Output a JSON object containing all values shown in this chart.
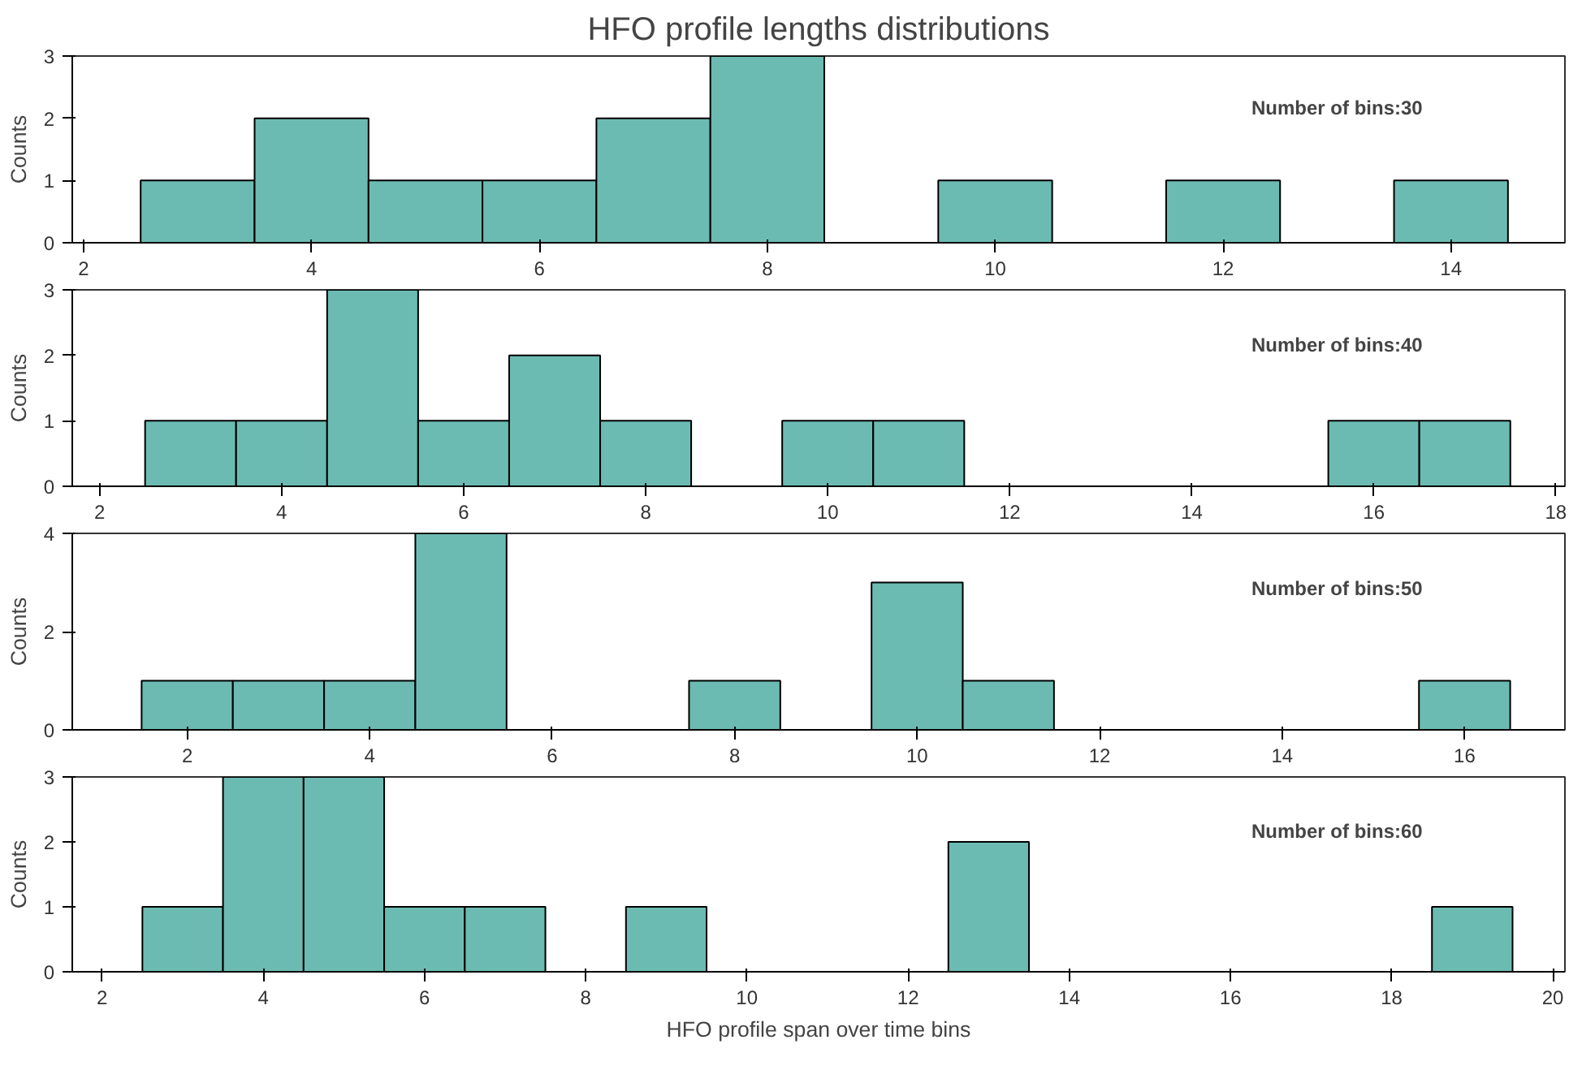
{
  "chart_data": [
    {
      "type": "histogram",
      "title": "HFO profile lengths distributions",
      "ylabel": "Counts",
      "annotations": [
        "Number of bins:30"
      ],
      "color": "#6cbbb2",
      "grid": false,
      "bins": [
        2.5,
        3.5,
        4.5,
        5.5,
        6.5,
        7.5,
        8.5,
        9.5,
        10.5,
        11.5,
        12.5,
        13.5,
        14.5
      ],
      "values": [
        1,
        2,
        1,
        1,
        2,
        3,
        0,
        1,
        0,
        1,
        0,
        1
      ],
      "xlim": [
        1.9,
        15
      ],
      "xticks": [
        2,
        4,
        6,
        8,
        10,
        12,
        14
      ],
      "ylim": [
        0,
        3
      ],
      "yticks": [
        0,
        1,
        2,
        3
      ]
    },
    {
      "type": "histogram",
      "ylabel": "Counts",
      "annotations": [
        "Number of bins:40"
      ],
      "color": "#6cbbb2",
      "grid": false,
      "bins": [
        2.5,
        3.5,
        4.5,
        5.5,
        6.5,
        7.5,
        8.5,
        9.5,
        10.5,
        11.5,
        12.5,
        13.5,
        14.5,
        15.5,
        16.5,
        17.5
      ],
      "values": [
        1,
        1,
        3,
        1,
        2,
        1,
        0,
        1,
        1,
        0,
        0,
        0,
        0,
        1,
        1
      ],
      "xlim": [
        1.7,
        18.1
      ],
      "xticks": [
        2,
        4,
        6,
        8,
        10,
        12,
        14,
        16,
        18
      ],
      "ylim": [
        0,
        3
      ],
      "yticks": [
        0,
        1,
        2,
        3
      ]
    },
    {
      "type": "histogram",
      "ylabel": "Counts",
      "annotations": [
        "Number of bins:50"
      ],
      "color": "#6cbbb2",
      "grid": false,
      "bins": [
        1.5,
        2.5,
        3.5,
        4.5,
        5.5,
        6.5,
        7.5,
        8.5,
        9.5,
        10.5,
        11.5,
        12.5,
        13.5,
        14.5,
        15.5,
        16.5
      ],
      "values": [
        1,
        1,
        1,
        4,
        0,
        0,
        1,
        0,
        3,
        1,
        0,
        0,
        0,
        0,
        1
      ],
      "xlim": [
        0.74,
        17.1
      ],
      "xticks": [
        2,
        4,
        6,
        8,
        10,
        12,
        14,
        16
      ],
      "ylim": [
        0,
        4
      ],
      "yticks": [
        0,
        2,
        4
      ]
    },
    {
      "type": "histogram",
      "ylabel": "Counts",
      "xlabel": "HFO profile span over time bins",
      "annotations": [
        "Number of bins:60"
      ],
      "color": "#6cbbb2",
      "grid": false,
      "bins": [
        2.5,
        3.5,
        4.5,
        5.5,
        6.5,
        7.5,
        8.5,
        9.5,
        10.5,
        11.5,
        12.5,
        13.5,
        14.5,
        15.5,
        16.5,
        17.5,
        18.5,
        19.5
      ],
      "values": [
        1,
        3,
        3,
        1,
        1,
        0,
        1,
        0,
        0,
        0,
        2,
        0,
        0,
        0,
        0,
        0,
        1
      ],
      "xlim": [
        1.63,
        20.15
      ],
      "xticks": [
        2,
        4,
        6,
        8,
        10,
        12,
        14,
        16,
        18,
        20
      ],
      "ylim": [
        0,
        3
      ],
      "yticks": [
        0,
        1,
        2,
        3
      ]
    }
  ]
}
